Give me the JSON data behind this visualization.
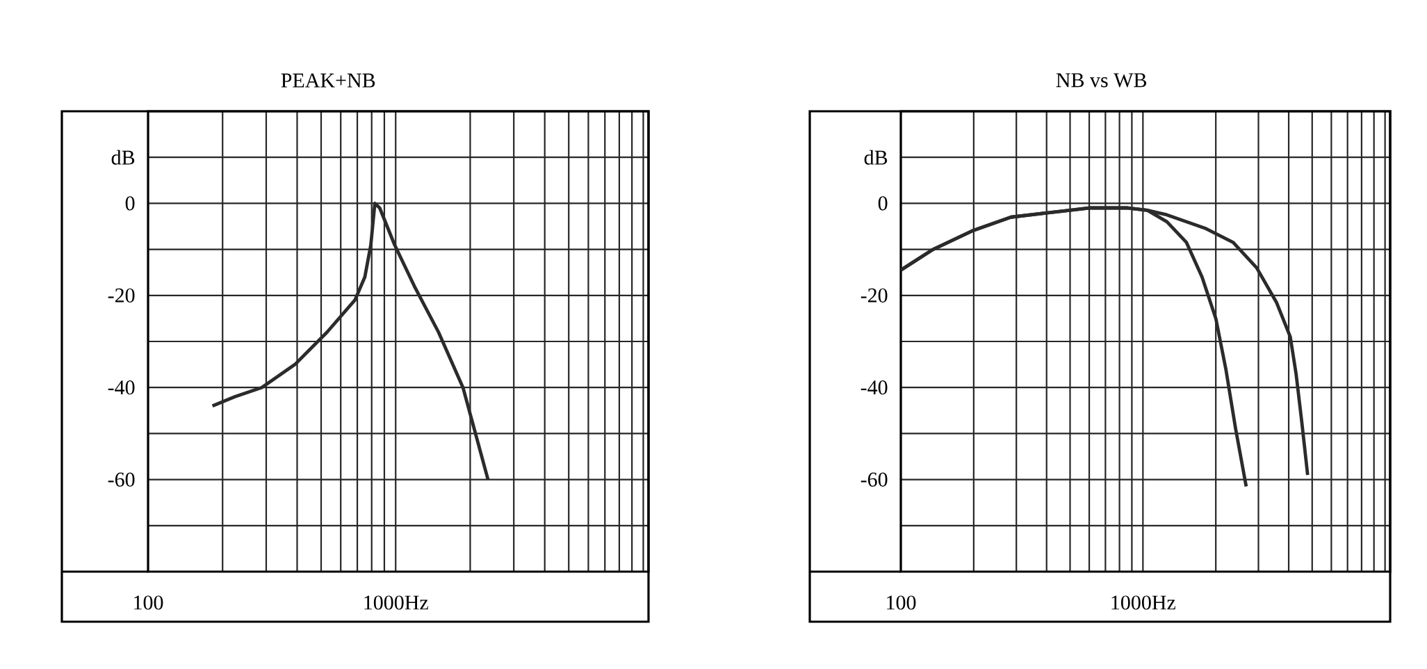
{
  "chart_data": [
    {
      "type": "line",
      "title": "PEAK+NB",
      "ylabel": "dB",
      "log": "x",
      "grid": true,
      "xlim": [
        100,
        10500
      ],
      "ylim": [
        -80,
        20
      ],
      "xticks": [
        {
          "value": 100,
          "label": "100"
        },
        {
          "value": 200,
          "label": null
        },
        {
          "value": 300,
          "label": null
        },
        {
          "value": 400,
          "label": null
        },
        {
          "value": 500,
          "label": null
        },
        {
          "value": 600,
          "label": null
        },
        {
          "value": 700,
          "label": null
        },
        {
          "value": 800,
          "label": null
        },
        {
          "value": 900,
          "label": null
        },
        {
          "value": 1000,
          "label": "1000Hz"
        },
        {
          "value": 2000,
          "label": null
        },
        {
          "value": 3000,
          "label": null
        },
        {
          "value": 4000,
          "label": null
        },
        {
          "value": 5000,
          "label": null
        },
        {
          "value": 6000,
          "label": null
        },
        {
          "value": 7000,
          "label": null
        },
        {
          "value": 8000,
          "label": null
        },
        {
          "value": 9000,
          "label": null
        },
        {
          "value": 10000,
          "label": null
        }
      ],
      "yticks": [
        {
          "value": 10,
          "label": null
        },
        0,
        {
          "value": -10,
          "label": null
        },
        -20,
        {
          "value": -30,
          "label": null
        },
        -40,
        {
          "value": -50,
          "label": null
        },
        -60,
        {
          "value": -70,
          "label": null
        }
      ],
      "series": [
        {
          "color": "#2b2b2b",
          "x": [
            182,
            224,
            288,
            392,
            528,
            685,
            751,
            794,
            824,
            862,
            990,
            1190,
            1490,
            1870,
            2360
          ],
          "values": [
            -44,
            -42,
            -40,
            -35,
            -28,
            -21,
            -16,
            -9,
            0,
            -1,
            -9,
            -18,
            -28,
            -40,
            -60
          ]
        }
      ]
    },
    {
      "type": "line",
      "title": "NB vs WB",
      "ylabel": "dB",
      "log": "x",
      "grid": true,
      "xlim": [
        100,
        10500
      ],
      "ylim": [
        -80,
        20
      ],
      "xticks": [
        {
          "value": 100,
          "label": "100"
        },
        {
          "value": 200,
          "label": null
        },
        {
          "value": 300,
          "label": null
        },
        {
          "value": 400,
          "label": null
        },
        {
          "value": 500,
          "label": null
        },
        {
          "value": 600,
          "label": null
        },
        {
          "value": 700,
          "label": null
        },
        {
          "value": 800,
          "label": null
        },
        {
          "value": 900,
          "label": null
        },
        {
          "value": 1000,
          "label": "1000Hz"
        },
        {
          "value": 2000,
          "label": null
        },
        {
          "value": 3000,
          "label": null
        },
        {
          "value": 4000,
          "label": null
        },
        {
          "value": 5000,
          "label": null
        },
        {
          "value": 6000,
          "label": null
        },
        {
          "value": 7000,
          "label": null
        },
        {
          "value": 8000,
          "label": null
        },
        {
          "value": 9000,
          "label": null
        },
        {
          "value": 10000,
          "label": null
        }
      ],
      "yticks": [
        {
          "value": 10,
          "label": null
        },
        0,
        {
          "value": -10,
          "label": null
        },
        -20,
        {
          "value": -30,
          "label": null
        },
        -40,
        {
          "value": -50,
          "label": null
        },
        -60,
        {
          "value": -70,
          "label": null
        }
      ],
      "series": [
        {
          "color": "#2b2b2b",
          "x": [
            100,
            136,
            197,
            285,
            413,
            598,
            867,
            1043,
            1256,
            1513,
            1754,
            2000,
            2200,
            2415,
            2670
          ],
          "values": [
            -14.5,
            -10,
            -6,
            -3,
            -2,
            -1,
            -1,
            -1.5,
            -4,
            -8.5,
            -16,
            -25,
            -36,
            -49,
            -61.5
          ]
        },
        {
          "color": "#2b2b2b",
          "x": [
            100,
            136,
            197,
            285,
            413,
            598,
            867,
            1043,
            1256,
            1823,
            2360,
            2950,
            3560,
            4060,
            4290,
            4530,
            4790
          ],
          "values": [
            -14.5,
            -10,
            -6,
            -3,
            -2,
            -1,
            -1,
            -1.5,
            -2.5,
            -5.5,
            -8.5,
            -14,
            -21.5,
            -29,
            -37,
            -47.5,
            -59
          ]
        }
      ]
    }
  ]
}
